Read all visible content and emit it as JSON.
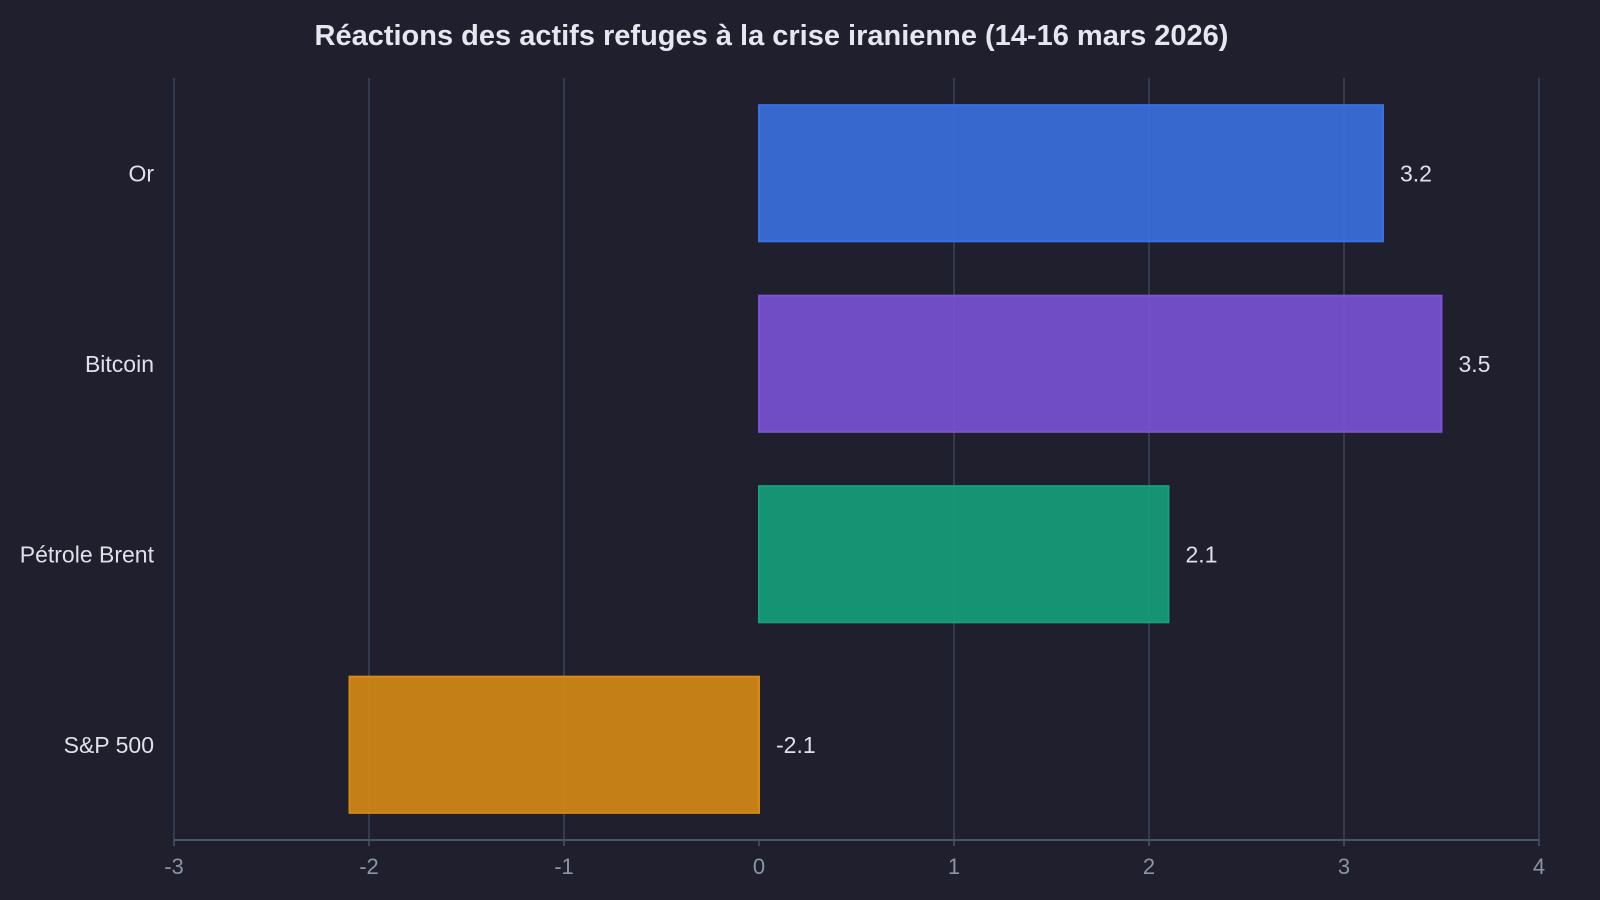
{
  "chart_data": {
    "type": "bar",
    "orientation": "horizontal",
    "title": "Réactions des actifs refuges à la crise iranienne (14-16 mars 2026)",
    "xlabel": "",
    "ylabel": "",
    "categories": [
      "Or",
      "Bitcoin",
      "Pétrole Brent",
      "S&P 500"
    ],
    "values": [
      3.2,
      3.5,
      2.1,
      -2.1
    ],
    "value_labels": [
      "3.2",
      "3.5",
      "2.1",
      "-2.1"
    ],
    "colors": [
      "#3a70e0",
      "#7a52d6",
      "#14a07a",
      "#d68a14"
    ],
    "xlim": [
      -3,
      4
    ],
    "xticks": [
      -3,
      -2,
      -1,
      0,
      1,
      2,
      3,
      4
    ],
    "xtick_labels": [
      "-3",
      "-2",
      "-1",
      "0",
      "1",
      "2",
      "3",
      "4"
    ],
    "grid": true,
    "legend": "none"
  }
}
